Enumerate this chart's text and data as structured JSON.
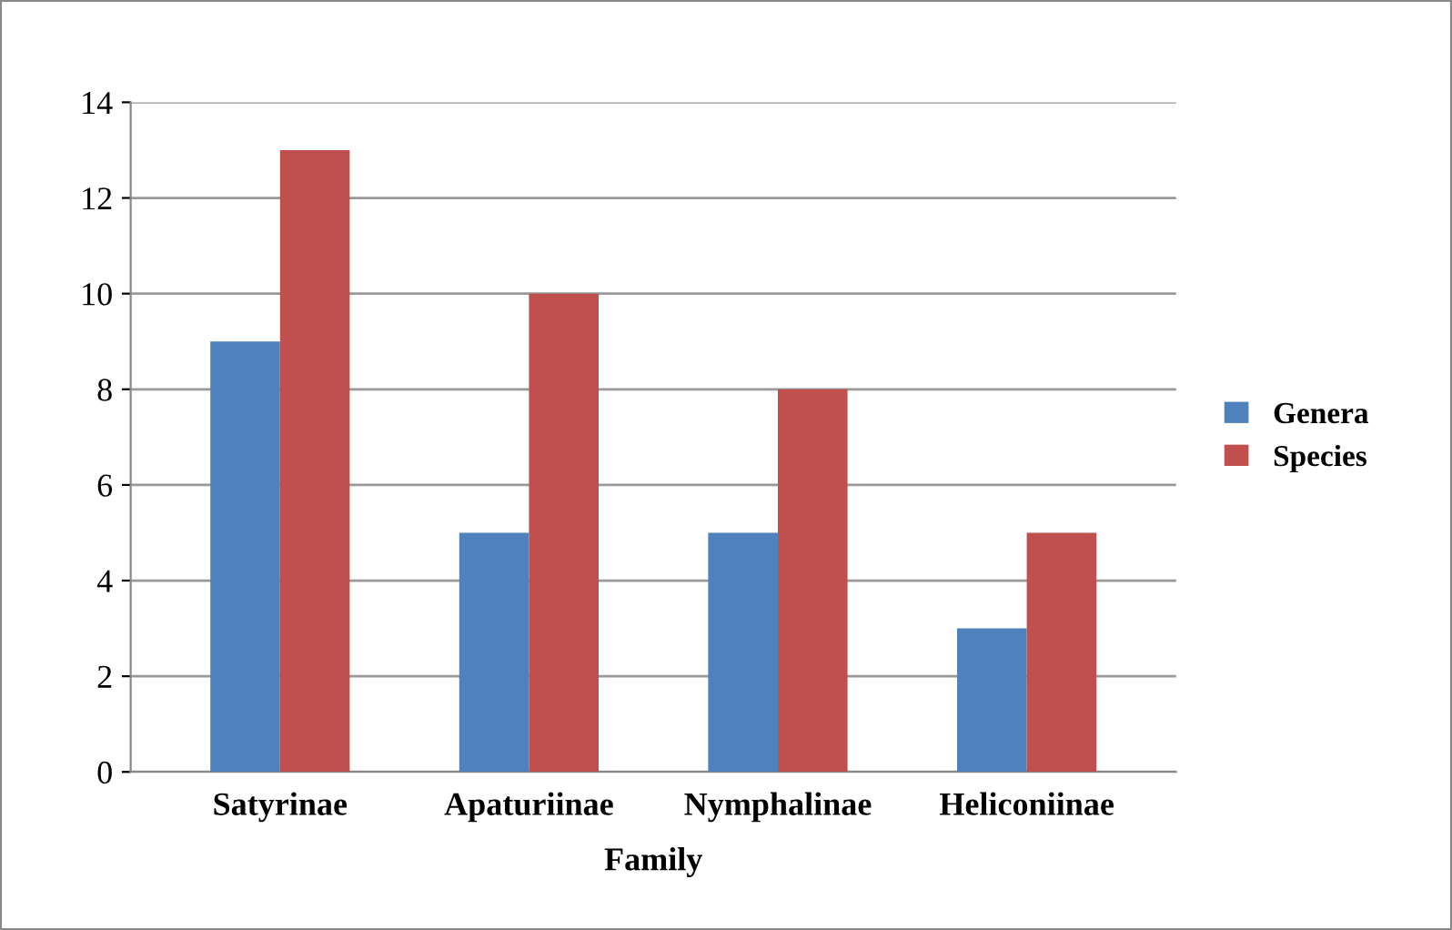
{
  "chart_data": {
    "type": "bar",
    "xlabel": "Family",
    "categories": [
      "Satyrinae",
      "Apaturiinae",
      "Nymphalinae",
      "Heliconiinae"
    ],
    "series": [
      {
        "name": "Genera",
        "color": "#4f81bd",
        "values": [
          9,
          5,
          5,
          3
        ]
      },
      {
        "name": "Species",
        "color": "#c0504d",
        "values": [
          13,
          10,
          8,
          5
        ]
      }
    ],
    "ylim": [
      0,
      14
    ],
    "yticks": [
      0,
      2,
      4,
      6,
      8,
      10,
      12,
      14
    ],
    "grid": "y",
    "legend": "right"
  }
}
